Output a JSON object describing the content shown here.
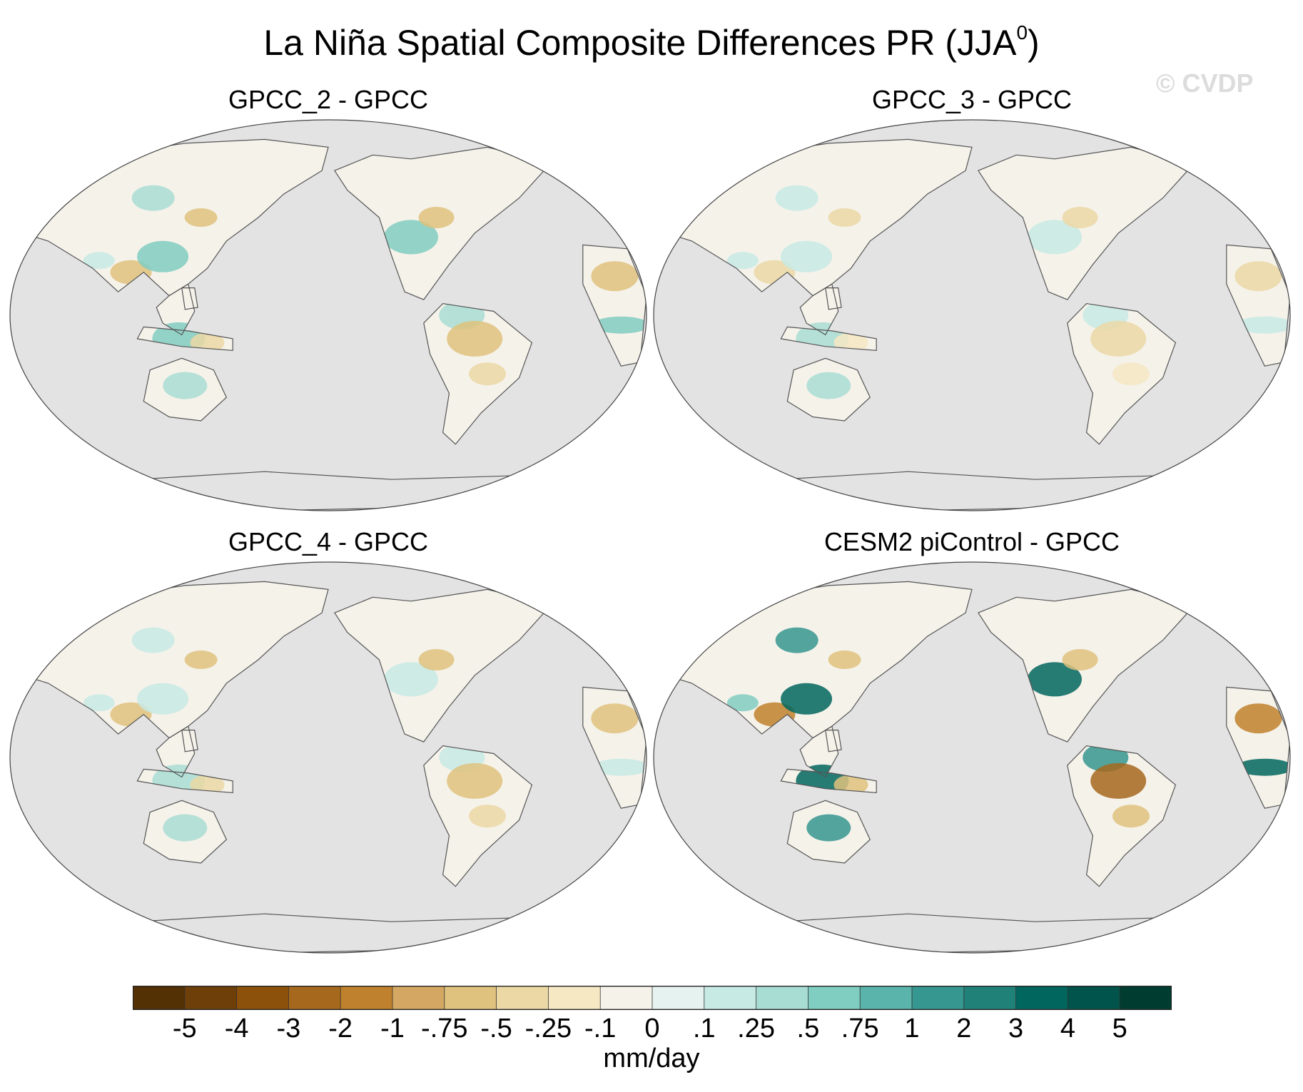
{
  "title": {
    "text": "La Niña Spatial Composite Differences PR (JJA",
    "superscript": "0",
    "close": ")"
  },
  "watermark": "© CVDP",
  "panels": [
    {
      "title": "GPCC_2 - GPCC"
    },
    {
      "title": "GPCC_3 - GPCC"
    },
    {
      "title": "GPCC_4 - GPCC"
    },
    {
      "title": "CESM2 piControl - GPCC"
    }
  ],
  "colorbar": {
    "units": "mm/day",
    "labels": [
      "-5",
      "-4",
      "-3",
      "-2",
      "-1",
      "-.75",
      "-.5",
      "-.25",
      "-.1",
      "0",
      ".1",
      ".25",
      ".5",
      ".75",
      "1",
      "2",
      "3",
      "4",
      "5"
    ],
    "colors": [
      "#543005",
      "#6f3f09",
      "#8c510a",
      "#a6681d",
      "#bf812d",
      "#d4a862",
      "#dfc27d",
      "#ebd8a5",
      "#f6e8c3",
      "#f5f2ea",
      "#e6f2f0",
      "#c7eae5",
      "#a8ddd4",
      "#80cdc1",
      "#5ab4ac",
      "#35978f",
      "#1f8178",
      "#01665e",
      "#01544b",
      "#003c30"
    ]
  },
  "map_style": {
    "ocean": "#e3e3e3",
    "land_base": "#f5f2ea",
    "coast": "#555555"
  }
}
